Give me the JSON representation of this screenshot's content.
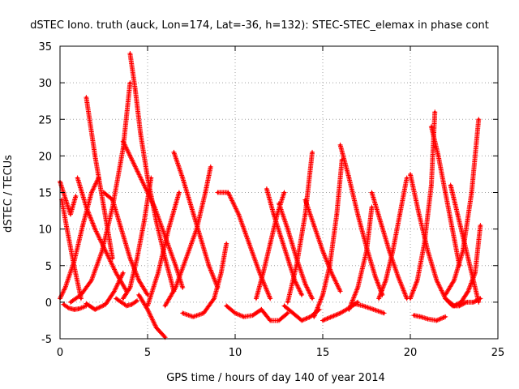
{
  "chart_data": {
    "type": "scatter",
    "title": "dSTEC Iono. truth (auck, Lon=174, Lat=-36, h=132): STEC-STEC_elemax in phase cont",
    "xlabel": "GPS time / hours of day 140 of year 2014",
    "ylabel": "dSTEC  / TECUs",
    "xlim": [
      0,
      25
    ],
    "ylim": [
      -5,
      35
    ],
    "xticks": [
      0,
      5,
      10,
      15,
      20,
      25
    ],
    "yticks": [
      -5,
      0,
      5,
      10,
      15,
      20,
      25,
      30,
      35
    ],
    "grid": true,
    "marker": "plus",
    "color": "#ff0000",
    "series": [
      {
        "x": [
          0.0,
          0.3,
          0.6,
          0.9
        ],
        "y": [
          16.5,
          14.2,
          12.0,
          14.5
        ]
      },
      {
        "x": [
          0.0,
          0.3,
          0.8,
          1.3,
          1.8,
          2.2
        ],
        "y": [
          0.5,
          2.0,
          5.5,
          10.5,
          15.0,
          17.0
        ]
      },
      {
        "x": [
          0.1,
          0.4,
          0.8,
          1.2
        ],
        "y": [
          14.0,
          10.0,
          5.0,
          0.5
        ]
      },
      {
        "x": [
          0.2,
          0.5,
          0.8,
          1.1,
          1.5
        ],
        "y": [
          -0.3,
          -0.8,
          -1.0,
          -0.9,
          -0.5
        ]
      },
      {
        "x": [
          0.6,
          1.2,
          1.8,
          2.4,
          3.0,
          3.6,
          4.0
        ],
        "y": [
          0.0,
          1.0,
          3.0,
          7.0,
          13.0,
          21.0,
          30.0
        ]
      },
      {
        "x": [
          1.0,
          1.5,
          2.0,
          2.6,
          3.2,
          3.8
        ],
        "y": [
          17.0,
          13.0,
          10.0,
          7.0,
          4.0,
          1.5
        ]
      },
      {
        "x": [
          1.5,
          2.0,
          2.5,
          3.0
        ],
        "y": [
          28.0,
          20.0,
          13.0,
          6.0
        ]
      },
      {
        "x": [
          1.5,
          2.0,
          2.6,
          3.1,
          3.6
        ],
        "y": [
          -0.2,
          -1.0,
          -0.3,
          1.5,
          4.0
        ]
      },
      {
        "x": [
          2.5,
          3.0,
          3.5,
          4.0,
          4.5,
          5.0
        ],
        "y": [
          15.0,
          14.0,
          10.0,
          6.0,
          3.0,
          1.0
        ]
      },
      {
        "x": [
          3.2,
          3.5,
          3.8,
          4.1,
          4.4
        ],
        "y": [
          0.5,
          0.0,
          -0.5,
          -0.3,
          0.2
        ]
      },
      {
        "x": [
          4.0,
          4.3,
          4.6,
          5.0,
          5.5,
          6.0,
          6.5
        ],
        "y": [
          34.0,
          29.0,
          23.0,
          17.0,
          11.0,
          6.0,
          1.5
        ]
      },
      {
        "x": [
          3.6,
          4.2,
          4.8,
          5.4,
          6.0,
          6.6,
          7.0
        ],
        "y": [
          22.0,
          19.0,
          16.0,
          13.0,
          9.0,
          5.0,
          2.0
        ]
      },
      {
        "x": [
          3.6,
          4.0,
          4.4,
          4.8,
          5.2
        ],
        "y": [
          0.5,
          2.0,
          6.0,
          11.0,
          17.0
        ]
      },
      {
        "x": [
          4.5,
          5.0,
          5.5,
          6.0
        ],
        "y": [
          1.0,
          -1.0,
          -3.5,
          -4.8
        ]
      },
      {
        "x": [
          5.0,
          5.6,
          6.2,
          6.8
        ],
        "y": [
          -0.5,
          4.0,
          10.0,
          15.0
        ]
      },
      {
        "x": [
          6.5,
          7.0,
          7.5,
          8.0,
          8.5,
          9.0
        ],
        "y": [
          20.5,
          17.0,
          13.0,
          9.0,
          5.0,
          2.0
        ]
      },
      {
        "x": [
          6.0,
          6.6,
          7.2,
          7.8,
          8.3,
          8.6
        ],
        "y": [
          -0.5,
          2.0,
          6.0,
          10.0,
          15.0,
          18.5
        ]
      },
      {
        "x": [
          7.0,
          7.6,
          8.2,
          8.8,
          9.2,
          9.5
        ],
        "y": [
          -1.5,
          -2.0,
          -1.5,
          0.5,
          4.0,
          8.0
        ]
      },
      {
        "x": [
          9.0,
          9.6,
          10.2,
          10.8,
          11.4,
          12.0
        ],
        "y": [
          15.0,
          15.0,
          12.0,
          8.0,
          4.0,
          0.5
        ]
      },
      {
        "x": [
          9.5,
          10.0,
          10.5,
          11.0,
          11.5
        ],
        "y": [
          -0.5,
          -1.5,
          -2.0,
          -1.8,
          -1.0
        ]
      },
      {
        "x": [
          11.5,
          12.0,
          12.5,
          13.0
        ],
        "y": [
          -1.0,
          -2.5,
          -2.5,
          -1.5
        ]
      },
      {
        "x": [
          11.2,
          11.6,
          12.0,
          12.4,
          12.8
        ],
        "y": [
          0.5,
          4.0,
          8.0,
          12.0,
          15.0
        ]
      },
      {
        "x": [
          11.8,
          12.2,
          12.6,
          13.0,
          13.4,
          13.8
        ],
        "y": [
          15.5,
          12.0,
          9.0,
          6.0,
          3.0,
          1.0
        ]
      },
      {
        "x": [
          12.5,
          13.0,
          13.5,
          14.0,
          14.4
        ],
        "y": [
          13.5,
          10.0,
          6.0,
          2.5,
          0.5
        ]
      },
      {
        "x": [
          12.8,
          13.3,
          13.8,
          14.3,
          14.8
        ],
        "y": [
          -0.5,
          -1.5,
          -2.5,
          -2.0,
          -1.0
        ]
      },
      {
        "x": [
          13.0,
          13.5,
          14.0,
          14.4
        ],
        "y": [
          0.0,
          5.0,
          12.0,
          20.5
        ]
      },
      {
        "x": [
          14.0,
          14.5,
          15.0,
          15.5,
          16.0
        ],
        "y": [
          14.0,
          10.5,
          7.0,
          4.0,
          1.5
        ]
      },
      {
        "x": [
          14.5,
          15.0,
          15.4,
          15.8,
          16.1
        ],
        "y": [
          -2.0,
          1.0,
          5.0,
          12.0,
          19.5
        ]
      },
      {
        "x": [
          15.0,
          15.5,
          16.0,
          16.5,
          17.0
        ],
        "y": [
          -2.5,
          -2.0,
          -1.5,
          -0.8,
          0.0
        ]
      },
      {
        "x": [
          16.0,
          16.5,
          17.0,
          17.5,
          18.0,
          18.4
        ],
        "y": [
          21.5,
          17.0,
          12.0,
          7.5,
          3.5,
          1.0
        ]
      },
      {
        "x": [
          16.5,
          17.0,
          17.5,
          17.8
        ],
        "y": [
          -1.0,
          2.0,
          7.0,
          13.0
        ]
      },
      {
        "x": [
          16.8,
          17.3,
          17.9,
          18.5
        ],
        "y": [
          -0.2,
          -0.5,
          -1.0,
          -1.5
        ]
      },
      {
        "x": [
          17.8,
          18.3,
          18.8,
          19.3,
          19.8
        ],
        "y": [
          15.0,
          11.0,
          7.0,
          3.5,
          0.5
        ]
      },
      {
        "x": [
          18.2,
          18.6,
          19.0,
          19.4,
          19.8
        ],
        "y": [
          0.5,
          3.0,
          7.0,
          12.0,
          17.0
        ]
      },
      {
        "x": [
          20.0,
          20.4,
          20.8,
          21.2,
          21.4
        ],
        "y": [
          0.5,
          3.0,
          8.0,
          16.0,
          26.0
        ]
      },
      {
        "x": [
          20.0,
          20.5,
          21.0,
          21.5,
          22.0,
          22.5
        ],
        "y": [
          17.5,
          12.0,
          7.0,
          3.0,
          0.5,
          -0.5
        ]
      },
      {
        "x": [
          20.2,
          20.6,
          21.0,
          21.5,
          22.0
        ],
        "y": [
          -1.8,
          -2.0,
          -2.3,
          -2.5,
          -2.0
        ]
      },
      {
        "x": [
          21.2,
          21.6,
          22.0,
          22.4,
          22.8
        ],
        "y": [
          24.0,
          20.0,
          15.0,
          10.0,
          5.0
        ]
      },
      {
        "x": [
          22.0,
          22.5,
          23.0,
          23.5,
          23.9
        ],
        "y": [
          1.0,
          3.0,
          7.0,
          15.0,
          25.0
        ]
      },
      {
        "x": [
          22.3,
          22.7,
          23.1,
          23.5,
          23.9
        ],
        "y": [
          16.0,
          12.0,
          8.0,
          4.0,
          0.0
        ]
      },
      {
        "x": [
          22.5,
          22.9,
          23.3,
          23.7,
          24.0
        ],
        "y": [
          -0.5,
          0.0,
          1.5,
          4.0,
          10.5
        ]
      },
      {
        "x": [
          22.0,
          22.4,
          22.8,
          23.2,
          23.6,
          24.0
        ],
        "y": [
          0.5,
          -0.5,
          -0.5,
          0.0,
          0.0,
          0.5
        ]
      }
    ]
  }
}
